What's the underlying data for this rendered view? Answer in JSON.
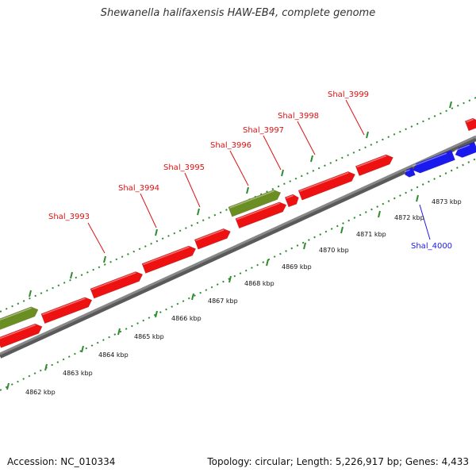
{
  "title": "Shewanella halifaxensis HAW-EB4, complete genome",
  "accession": "Accession: NC_010334",
  "summary": "Topology: circular; Length: 5,226,917 bp; Genes: 4,433",
  "colors": {
    "forward_gene": "#ee1111",
    "reverse_gene": "#1a1aee",
    "rna_gene": "#6b8e23",
    "backbone": "#888888",
    "ticks": "#2e8b2e",
    "label_red": "#dd1111",
    "label_blue": "#1a1aee"
  },
  "gene_labels": [
    {
      "id": "g3993",
      "text": "Shal_3993",
      "strand": "forward"
    },
    {
      "id": "g3994",
      "text": "Shal_3994",
      "strand": "forward"
    },
    {
      "id": "g3995",
      "text": "Shal_3995",
      "strand": "forward"
    },
    {
      "id": "g3996",
      "text": "Shal_3996",
      "strand": "forward"
    },
    {
      "id": "g3997",
      "text": "Shal_3997",
      "strand": "forward"
    },
    {
      "id": "g3998",
      "text": "Shal_3998",
      "strand": "forward"
    },
    {
      "id": "g3999",
      "text": "Shal_3999",
      "strand": "forward"
    },
    {
      "id": "g4000",
      "text": "Shal_4000",
      "strand": "reverse"
    }
  ],
  "tick_labels": [
    {
      "id": "t4862",
      "text": "4862 kbp"
    },
    {
      "id": "t4863",
      "text": "4863 kbp"
    },
    {
      "id": "t4864",
      "text": "4864 kbp"
    },
    {
      "id": "t4865",
      "text": "4865 kbp"
    },
    {
      "id": "t4866",
      "text": "4866 kbp"
    },
    {
      "id": "t4867",
      "text": "4867 kbp"
    },
    {
      "id": "t4868",
      "text": "4868 kbp"
    },
    {
      "id": "t4869",
      "text": "4869 kbp"
    },
    {
      "id": "t4870",
      "text": "4870 kbp"
    },
    {
      "id": "t4871",
      "text": "4871 kbp"
    },
    {
      "id": "t4872",
      "text": "4872 kbp"
    },
    {
      "id": "t4873",
      "text": "4873 kbp"
    }
  ]
}
